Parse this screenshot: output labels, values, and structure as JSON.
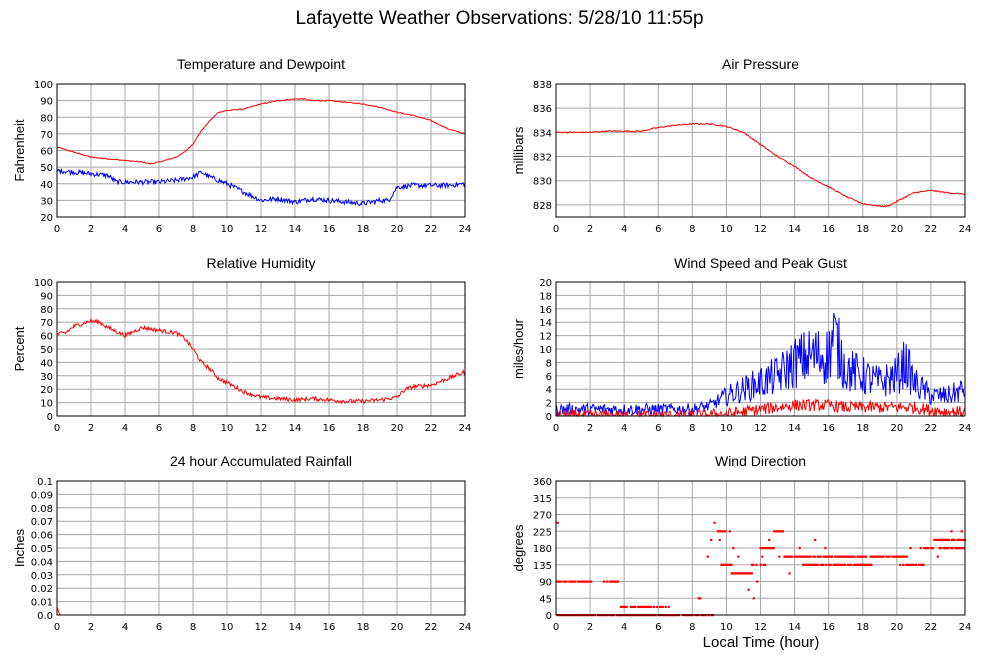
{
  "page": {
    "title": "Lafayette Weather Observations: 5/28/10 11:55p",
    "x_axis_label": "Local Time (hour)"
  },
  "colors": {
    "series_a": "#ff0000",
    "series_b": "#0000ff",
    "grid": "#a8a8a8",
    "frame": "#000000"
  },
  "chart_data": [
    {
      "id": "temp",
      "type": "line",
      "title": "Temperature and Dewpoint",
      "xlabel": "",
      "ylabel": "Fahrenheit",
      "xlim": [
        0,
        24
      ],
      "ylim": [
        20,
        100
      ],
      "xticks": [
        0,
        2,
        4,
        6,
        8,
        10,
        12,
        14,
        16,
        18,
        20,
        22,
        24
      ],
      "yticks": [
        20,
        30,
        40,
        50,
        60,
        70,
        80,
        90,
        100
      ],
      "series": [
        {
          "color": "#ff0000",
          "noise": 0.3,
          "x": [
            0,
            1,
            2,
            3,
            4,
            5,
            5.5,
            6,
            7,
            7.5,
            8,
            8.5,
            9,
            9.5,
            10,
            11,
            12,
            13,
            14,
            14.5,
            15,
            16,
            17,
            18,
            19,
            20,
            21,
            22,
            23,
            24
          ],
          "y": [
            62,
            59,
            56,
            55,
            54,
            53,
            52,
            53,
            56,
            59,
            64,
            72,
            78,
            83,
            84,
            85,
            88,
            90,
            91,
            91,
            90,
            90,
            89,
            88,
            86,
            83,
            81,
            78,
            73,
            70
          ]
        },
        {
          "color": "#0000ff",
          "noise": 1.5,
          "x": [
            0,
            1,
            2,
            3,
            3.5,
            4,
            5,
            6,
            7,
            8,
            8.5,
            9,
            9.5,
            10,
            11,
            12,
            13,
            14,
            15,
            16,
            17,
            18,
            19,
            19.5,
            20,
            21,
            22,
            23,
            24
          ],
          "y": [
            48,
            47,
            46,
            45,
            41,
            41,
            41,
            41,
            42,
            44,
            47,
            44,
            42,
            40,
            35,
            30,
            31,
            29,
            31,
            30,
            29,
            28,
            30,
            30,
            38,
            39,
            39,
            39,
            40
          ]
        }
      ]
    },
    {
      "id": "pressure",
      "type": "line",
      "title": "Air Pressure",
      "xlabel": "",
      "ylabel": "millibars",
      "xlim": [
        0,
        24
      ],
      "ylim": [
        827,
        838
      ],
      "xticks": [
        0,
        2,
        4,
        6,
        8,
        10,
        12,
        14,
        16,
        18,
        20,
        22,
        24
      ],
      "yticks": [
        828,
        830,
        832,
        834,
        836,
        838
      ],
      "series": [
        {
          "color": "#ff0000",
          "noise": 0.05,
          "x": [
            0,
            1,
            2,
            3,
            4,
            5,
            6,
            7,
            8,
            9,
            10,
            11,
            12,
            13,
            14,
            15,
            16,
            17,
            18,
            19,
            19.5,
            20,
            21,
            22,
            23,
            24
          ],
          "y": [
            834,
            834,
            834,
            834.1,
            834.1,
            834.1,
            834.4,
            834.6,
            834.7,
            834.7,
            834.5,
            834,
            833,
            832,
            831.2,
            830.2,
            829.5,
            828.7,
            828.1,
            827.9,
            827.9,
            828.3,
            829,
            829.2,
            829,
            828.9
          ]
        }
      ]
    },
    {
      "id": "humidity",
      "type": "line",
      "title": "Relative Humidity",
      "xlabel": "",
      "ylabel": "Percent",
      "xlim": [
        0,
        24
      ],
      "ylim": [
        0,
        100
      ],
      "xticks": [
        0,
        2,
        4,
        6,
        8,
        10,
        12,
        14,
        16,
        18,
        20,
        22,
        24
      ],
      "yticks": [
        0,
        10,
        20,
        30,
        40,
        50,
        60,
        70,
        80,
        90,
        100
      ],
      "series": [
        {
          "color": "#ff0000",
          "noise": 1.5,
          "x": [
            0,
            0.5,
            1,
            2,
            2.5,
            3,
            3.5,
            4,
            5,
            6,
            7,
            7.5,
            8,
            8.5,
            9,
            9.5,
            10,
            11,
            12,
            13,
            14,
            15,
            16,
            17,
            18,
            19,
            20,
            20.5,
            21,
            22,
            23,
            24
          ],
          "y": [
            61,
            62,
            67,
            71,
            70,
            66,
            63,
            60,
            66,
            64,
            62,
            58,
            50,
            40,
            35,
            28,
            25,
            18,
            14,
            13,
            12,
            13,
            12,
            11,
            11,
            12,
            14,
            20,
            22,
            23,
            28,
            33
          ]
        }
      ]
    },
    {
      "id": "wind",
      "type": "line",
      "title": "Wind Speed and Peak Gust",
      "xlabel": "",
      "ylabel": "miles/hour",
      "xlim": [
        0,
        24
      ],
      "ylim": [
        0,
        20
      ],
      "xticks": [
        0,
        2,
        4,
        6,
        8,
        10,
        12,
        14,
        16,
        18,
        20,
        22,
        24
      ],
      "yticks": [
        0,
        2,
        4,
        6,
        8,
        10,
        12,
        14,
        16,
        18,
        20
      ],
      "series": [
        {
          "color": "#0000ff",
          "noise": 3.0,
          "x": [
            0,
            2,
            4,
            6,
            7,
            8,
            9,
            10,
            11,
            12,
            13,
            14,
            15,
            16,
            16.3,
            17,
            18,
            19,
            20,
            20.5,
            21,
            22,
            23,
            24
          ],
          "y": [
            1,
            1,
            1,
            1,
            1,
            1,
            1.5,
            3,
            4,
            5,
            6,
            8,
            9,
            9,
            12,
            7,
            6,
            5,
            6,
            8,
            5,
            3,
            3,
            4
          ]
        },
        {
          "color": "#ff0000",
          "noise": 0.9,
          "x": [
            0,
            8,
            10,
            11,
            12,
            13,
            14,
            15,
            16,
            17,
            18,
            19,
            20,
            21,
            22,
            23,
            24
          ],
          "y": [
            0,
            0,
            0.3,
            0.6,
            1,
            1.3,
            1.6,
            1.6,
            1.6,
            1.3,
            1.3,
            1.3,
            1.3,
            1.3,
            0.9,
            0.6,
            0.6
          ]
        }
      ]
    },
    {
      "id": "rain",
      "type": "line",
      "title": "24 hour Accumulated Rainfall",
      "xlabel": "",
      "ylabel": "Inches",
      "xlim": [
        0,
        24
      ],
      "ylim": [
        0,
        0.1
      ],
      "xticks": [
        0,
        2,
        4,
        6,
        8,
        10,
        12,
        14,
        16,
        18,
        20,
        22,
        24
      ],
      "yticks": [
        "0.0",
        "0.01",
        "0.02",
        "0.03",
        "0.04",
        "0.05",
        "0.06",
        "0.07",
        "0.08",
        "0.09",
        "0.1"
      ],
      "series": [
        {
          "color": "#ff0000",
          "noise": 0,
          "x": [
            0,
            0.1,
            0.2,
            24
          ],
          "y": [
            0.006,
            0.002,
            0,
            0
          ]
        }
      ]
    },
    {
      "id": "direction",
      "type": "scatter",
      "title": "Wind Direction",
      "xlabel": "Local Time (hour)",
      "ylabel": "degrees",
      "xlim": [
        0,
        24
      ],
      "ylim": [
        0,
        360
      ],
      "xticks": [
        0,
        2,
        4,
        6,
        8,
        10,
        12,
        14,
        16,
        18,
        20,
        22,
        24
      ],
      "yticks": [
        0,
        45,
        90,
        135,
        180,
        225,
        270,
        315,
        360
      ],
      "segments": [
        {
          "x0": 0,
          "x1": 3.9,
          "y": 0
        },
        {
          "x0": 0.1,
          "x1": 2.1,
          "y": 90
        },
        {
          "x0": 2.8,
          "x1": 3.8,
          "y": 90
        },
        {
          "x0": 3.8,
          "x1": 7.5,
          "y": 0
        },
        {
          "x0": 3.8,
          "x1": 6.7,
          "y": 22
        },
        {
          "x0": 7.5,
          "x1": 9.2,
          "y": 0
        },
        {
          "x0": 8.2,
          "x1": 8.6,
          "y": 45
        },
        {
          "x0": 9.5,
          "x1": 10,
          "y": 225
        },
        {
          "x0": 9.7,
          "x1": 10.3,
          "y": 135
        },
        {
          "x0": 10.3,
          "x1": 11.5,
          "y": 112
        },
        {
          "x0": 11.5,
          "x1": 12.3,
          "y": 135
        },
        {
          "x0": 12.0,
          "x1": 12.8,
          "y": 180
        },
        {
          "x0": 12.8,
          "x1": 13.4,
          "y": 225
        },
        {
          "x0": 13.4,
          "x1": 16.5,
          "y": 157
        },
        {
          "x0": 14.5,
          "x1": 18.5,
          "y": 135
        },
        {
          "x0": 16.5,
          "x1": 20.6,
          "y": 157
        },
        {
          "x0": 20.2,
          "x1": 21.6,
          "y": 135
        },
        {
          "x0": 21.6,
          "x1": 22.2,
          "y": 180
        },
        {
          "x0": 22.2,
          "x1": 24,
          "y": 202
        },
        {
          "x0": 22.5,
          "x1": 24,
          "y": 180
        }
      ],
      "points": [
        {
          "x": 0.1,
          "y": 248
        },
        {
          "x": 3.2,
          "y": 0
        },
        {
          "x": 8.9,
          "y": 157
        },
        {
          "x": 9.1,
          "y": 202
        },
        {
          "x": 9.3,
          "y": 248
        },
        {
          "x": 9.6,
          "y": 202
        },
        {
          "x": 10.2,
          "y": 225
        },
        {
          "x": 10.4,
          "y": 180
        },
        {
          "x": 10.7,
          "y": 157
        },
        {
          "x": 11.3,
          "y": 68
        },
        {
          "x": 11.6,
          "y": 45
        },
        {
          "x": 11.8,
          "y": 90
        },
        {
          "x": 12.1,
          "y": 157
        },
        {
          "x": 12.5,
          "y": 202
        },
        {
          "x": 13.1,
          "y": 157
        },
        {
          "x": 13.7,
          "y": 112
        },
        {
          "x": 14.3,
          "y": 180
        },
        {
          "x": 15.2,
          "y": 202
        },
        {
          "x": 15.8,
          "y": 180
        },
        {
          "x": 17.3,
          "y": 157
        },
        {
          "x": 18.7,
          "y": 157
        },
        {
          "x": 20.8,
          "y": 180
        },
        {
          "x": 21.4,
          "y": 180
        },
        {
          "x": 22.4,
          "y": 157
        },
        {
          "x": 23.2,
          "y": 225
        },
        {
          "x": 23.6,
          "y": 180
        },
        {
          "x": 23.8,
          "y": 225
        }
      ]
    }
  ]
}
